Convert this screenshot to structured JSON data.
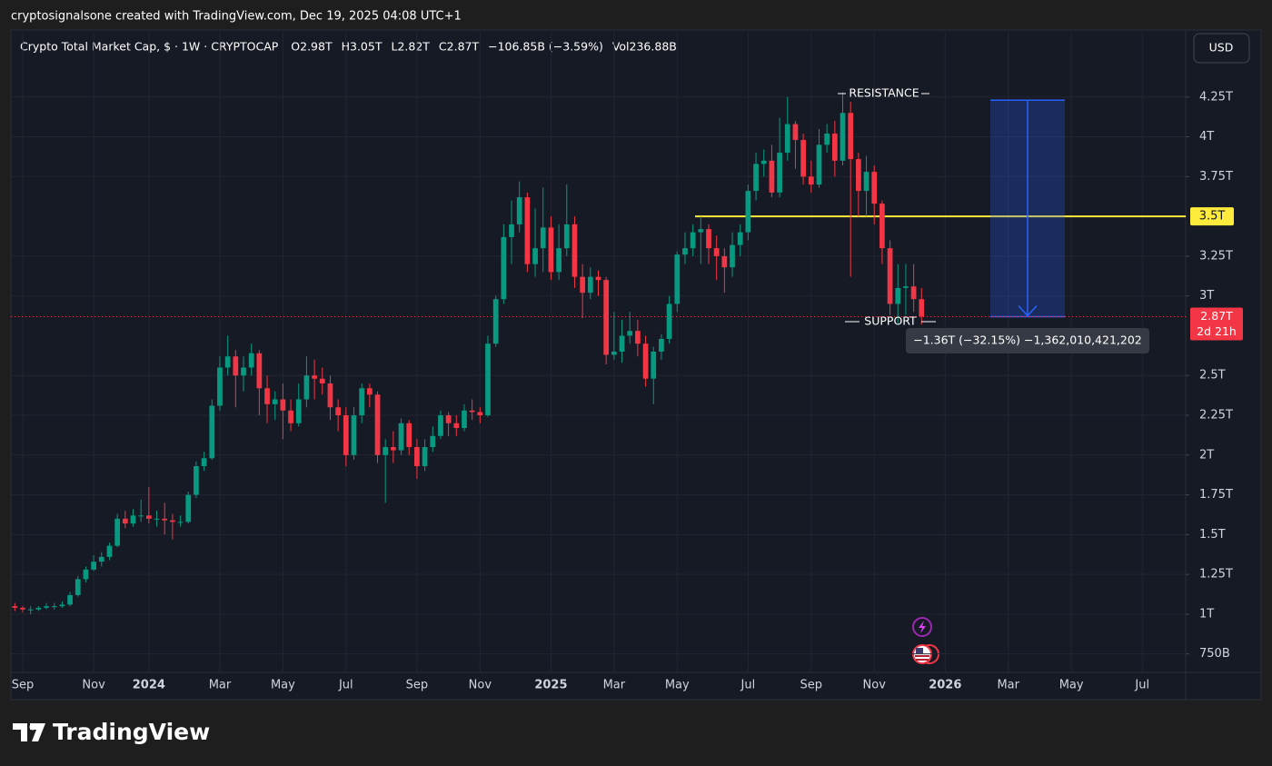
{
  "header": "cryptosignalsone created with TradingView.com, Dec 19, 2025 04:08 UTC+1",
  "footer_brand": "TradingView",
  "chart_data": {
    "type": "candlestick",
    "title": "Crypto Total Market Cap, $ · 1W · CRYPTOCAP",
    "legend": [
      "O2.98T",
      "H3.05T",
      "L2.82T",
      "C2.87T",
      "−106.85B (−3.59%)",
      "Vol236.88B"
    ],
    "currency_button": "USD",
    "up_color": "#089981",
    "down_color": "#f23645",
    "grid": true,
    "categories": [
      null,
      "Sep",
      null,
      null,
      null,
      null,
      null,
      null,
      null,
      null,
      "Nov",
      null,
      null,
      null,
      null,
      null,
      null,
      "2024",
      null,
      null,
      null,
      null,
      null,
      null,
      null,
      null,
      "Mar",
      null,
      null,
      null,
      null,
      null,
      null,
      null,
      "May",
      null,
      null,
      null,
      null,
      null,
      null,
      null,
      "Jul",
      null,
      null,
      null,
      null,
      null,
      null,
      null,
      null,
      "Sep",
      null,
      null,
      null,
      null,
      null,
      null,
      null,
      "Nov",
      null,
      null,
      null,
      null,
      null,
      null,
      null,
      null,
      "2025",
      null,
      null,
      null,
      null,
      null,
      null,
      null,
      "Mar",
      null,
      null,
      null,
      null,
      null,
      null,
      null,
      "May",
      null,
      null,
      null,
      null,
      null,
      null,
      null,
      null,
      "Jul",
      null,
      null,
      null,
      null,
      null,
      null,
      null,
      "Sep",
      null,
      null,
      null,
      null,
      null,
      null,
      null,
      "Nov",
      null,
      null,
      null,
      null,
      null,
      null,
      null,
      null,
      "2026",
      null,
      null,
      null,
      null,
      null,
      null,
      null,
      "Mar",
      null,
      null,
      null,
      null,
      null,
      null,
      null,
      "May",
      null,
      null,
      null,
      null,
      null,
      null,
      null,
      null,
      "Jul",
      null,
      null,
      null,
      null,
      null
    ],
    "open": [
      1.05,
      1.04,
      1.03,
      1.03,
      1.04,
      1.05,
      1.05,
      1.06,
      1.12,
      1.22,
      1.28,
      1.33,
      1.36,
      1.43,
      1.6,
      1.57,
      1.62,
      1.62,
      1.6,
      1.6,
      1.59,
      1.58,
      1.58,
      1.75,
      1.93,
      1.98,
      2.31,
      2.55,
      2.62,
      2.5,
      2.55,
      2.64,
      2.42,
      2.32,
      2.35,
      2.28,
      2.2,
      2.35,
      2.5,
      2.48,
      2.45,
      2.3,
      2.25,
      2.0,
      2.25,
      2.42,
      2.38,
      2.0,
      2.05,
      2.03,
      2.2,
      2.05,
      1.93,
      2.05,
      2.12,
      2.25,
      2.2,
      2.17,
      2.28,
      2.27,
      2.25,
      2.7,
      2.98,
      3.37,
      3.45,
      3.62,
      3.2,
      3.3,
      3.43,
      3.15,
      3.3,
      3.45,
      3.12,
      3.02,
      3.12,
      3.1,
      2.63,
      2.65,
      2.75,
      2.78,
      2.7,
      2.48,
      2.65,
      2.73,
      2.95,
      3.26,
      3.3,
      3.4,
      3.42,
      3.3,
      3.25,
      3.18,
      3.32,
      3.4,
      3.66,
      3.83,
      3.85,
      3.65,
      3.9,
      4.08,
      3.98,
      3.75,
      3.7,
      3.95,
      4.02,
      3.85,
      4.15,
      3.86,
      3.66,
      3.78,
      3.58,
      3.3,
      2.95,
      3.05,
      3.06,
      2.98,
      null,
      null,
      null,
      null,
      null,
      null,
      null,
      null,
      null,
      null,
      null,
      null,
      null,
      null,
      null,
      null,
      null,
      null,
      null,
      null,
      null,
      null,
      null,
      null,
      null,
      null,
      null,
      null,
      null,
      null,
      null,
      null,
      null
    ],
    "high": [
      1.07,
      1.05,
      1.05,
      1.05,
      1.07,
      1.07,
      1.08,
      1.14,
      1.24,
      1.3,
      1.37,
      1.39,
      1.45,
      1.63,
      1.65,
      1.66,
      1.72,
      1.8,
      1.65,
      1.7,
      1.63,
      1.62,
      1.77,
      1.96,
      2.02,
      2.35,
      2.62,
      2.75,
      2.66,
      2.62,
      2.7,
      2.66,
      2.5,
      2.4,
      2.45,
      2.35,
      2.45,
      2.62,
      2.6,
      2.55,
      2.5,
      2.35,
      2.3,
      2.3,
      2.45,
      2.45,
      2.4,
      2.1,
      2.15,
      2.23,
      2.22,
      2.1,
      2.1,
      2.18,
      2.28,
      2.27,
      2.25,
      2.32,
      2.35,
      2.3,
      2.75,
      3.0,
      3.45,
      3.6,
      3.72,
      3.65,
      3.55,
      3.68,
      3.5,
      3.45,
      3.7,
      3.5,
      3.2,
      3.18,
      3.16,
      3.12,
      2.9,
      2.85,
      2.9,
      2.85,
      2.75,
      2.68,
      2.76,
      3.0,
      3.28,
      3.4,
      3.45,
      3.5,
      3.45,
      3.38,
      3.3,
      3.4,
      3.45,
      3.7,
      3.9,
      3.92,
      3.95,
      4.12,
      4.25,
      4.1,
      4.02,
      3.85,
      4.05,
      4.08,
      4.1,
      4.28,
      4.22,
      3.9,
      3.88,
      3.82,
      3.6,
      3.35,
      3.2,
      3.2,
      3.2,
      3.05,
      null,
      null,
      null,
      null,
      null,
      null,
      null,
      null,
      null,
      null,
      null,
      null,
      null,
      null,
      null,
      null,
      null,
      null,
      null,
      null,
      null,
      null,
      null,
      null,
      null,
      null,
      null,
      null,
      null,
      null,
      null,
      null,
      null
    ],
    "low": [
      1.02,
      1.01,
      1.0,
      1.02,
      1.03,
      1.03,
      1.04,
      1.05,
      1.11,
      1.2,
      1.27,
      1.3,
      1.34,
      1.42,
      1.54,
      1.55,
      1.58,
      1.57,
      1.55,
      1.5,
      1.47,
      1.55,
      1.57,
      1.73,
      1.9,
      1.97,
      2.28,
      2.5,
      2.3,
      2.4,
      2.5,
      2.25,
      2.2,
      2.22,
      2.1,
      2.15,
      2.18,
      2.3,
      2.35,
      2.38,
      2.22,
      2.15,
      1.93,
      1.97,
      2.2,
      2.3,
      1.95,
      1.7,
      1.95,
      2.0,
      2.0,
      1.85,
      1.9,
      2.02,
      2.1,
      2.12,
      2.12,
      2.15,
      2.22,
      2.2,
      2.24,
      2.68,
      2.95,
      3.2,
      3.4,
      3.15,
      3.12,
      3.15,
      3.1,
      3.1,
      3.25,
      3.05,
      2.86,
      2.98,
      3.0,
      2.57,
      2.6,
      2.58,
      2.7,
      2.62,
      2.43,
      2.32,
      2.6,
      2.7,
      2.9,
      3.2,
      3.25,
      3.2,
      3.2,
      3.1,
      3.02,
      3.12,
      3.25,
      3.35,
      3.6,
      3.75,
      3.62,
      3.62,
      3.85,
      3.8,
      3.7,
      3.65,
      3.68,
      3.9,
      3.75,
      3.82,
      3.12,
      3.5,
      3.5,
      3.45,
      3.2,
      2.88,
      2.82,
      2.88,
      2.9,
      2.82,
      null,
      null,
      null,
      null,
      null,
      null,
      null,
      null,
      null,
      null,
      null,
      null,
      null,
      null,
      null,
      null,
      null,
      null,
      null,
      null,
      null,
      null,
      null,
      null,
      null,
      null,
      null,
      null,
      null,
      null,
      null,
      null,
      null
    ],
    "close": [
      1.04,
      1.03,
      1.03,
      1.04,
      1.05,
      1.05,
      1.06,
      1.12,
      1.22,
      1.28,
      1.33,
      1.36,
      1.43,
      1.6,
      1.57,
      1.62,
      1.62,
      1.6,
      1.6,
      1.59,
      1.58,
      1.58,
      1.75,
      1.93,
      1.98,
      2.31,
      2.55,
      2.62,
      2.5,
      2.55,
      2.64,
      2.42,
      2.32,
      2.35,
      2.28,
      2.2,
      2.35,
      2.5,
      2.48,
      2.45,
      2.3,
      2.25,
      2.0,
      2.25,
      2.42,
      2.38,
      2.0,
      2.05,
      2.03,
      2.2,
      2.05,
      1.93,
      2.05,
      2.12,
      2.25,
      2.2,
      2.17,
      2.28,
      2.27,
      2.25,
      2.7,
      2.98,
      3.37,
      3.45,
      3.62,
      3.2,
      3.3,
      3.43,
      3.15,
      3.3,
      3.45,
      3.12,
      3.02,
      3.12,
      3.1,
      2.63,
      2.65,
      2.75,
      2.78,
      2.7,
      2.48,
      2.65,
      2.73,
      2.95,
      3.26,
      3.3,
      3.4,
      3.42,
      3.3,
      3.25,
      3.18,
      3.32,
      3.4,
      3.66,
      3.83,
      3.85,
      3.65,
      3.9,
      4.08,
      3.98,
      3.75,
      3.7,
      3.95,
      4.02,
      3.85,
      4.15,
      3.86,
      3.66,
      3.78,
      3.58,
      3.3,
      2.95,
      3.05,
      3.06,
      2.98,
      2.87,
      null,
      null,
      null,
      null,
      null,
      null,
      null,
      null,
      null,
      null,
      null,
      null,
      null,
      null,
      null,
      null,
      null,
      null,
      null,
      null,
      null,
      null,
      null,
      null,
      null,
      null,
      null,
      null,
      null,
      null,
      null,
      null,
      null
    ],
    "ylim": [
      0.634,
      4.66
    ],
    "yticks": [
      {
        "value": 0.75,
        "label": "750B"
      },
      {
        "value": 1,
        "label": "1T"
      },
      {
        "value": 1.25,
        "label": "1.25T"
      },
      {
        "value": 1.5,
        "label": "1.5T"
      },
      {
        "value": 1.75,
        "label": "1.75T"
      },
      {
        "value": 2,
        "label": "2T"
      },
      {
        "value": 2.25,
        "label": "2.25T"
      },
      {
        "value": 2.5,
        "label": "2.5T"
      },
      {
        "value": 3,
        "label": "3T"
      },
      {
        "value": 3.25,
        "label": "3.25T"
      },
      {
        "value": 3.75,
        "label": "3.75T"
      },
      {
        "value": 4,
        "label": "4T"
      },
      {
        "value": 4.25,
        "label": "4.25T"
      }
    ],
    "hline": {
      "value": 3.5,
      "label": "3.5T",
      "color": "#ffeb3b"
    },
    "last_price": {
      "value": 2.87,
      "label": "2.87T",
      "countdown": "2d 21h"
    },
    "annotations": [
      "RESISTANCE",
      "SUPPORT"
    ],
    "measure": {
      "from": 4.23,
      "to": 2.87,
      "label": "−1.36T (−32.15%) −1,362,010,421,202",
      "color": "#2962ff"
    }
  }
}
